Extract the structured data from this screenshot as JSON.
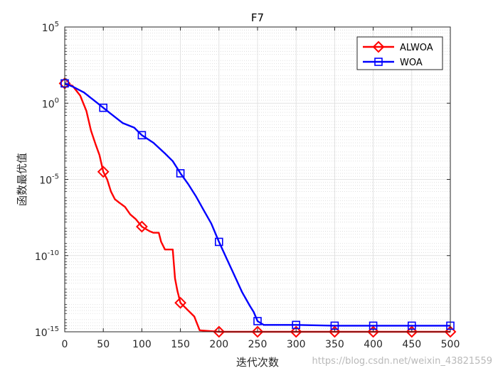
{
  "chart_data": {
    "type": "line",
    "title": "F7",
    "xlabel": "迭代次数",
    "ylabel": "函数最优值",
    "xlim": [
      0,
      500
    ],
    "ylim_exponent": [
      -15,
      5
    ],
    "yscale": "log",
    "x_ticks": [
      "0",
      "50",
      "100",
      "150",
      "200",
      "250",
      "300",
      "350",
      "400",
      "450",
      "500"
    ],
    "y_ticks": [
      {
        "base": "10",
        "exp": "5"
      },
      {
        "base": "10",
        "exp": "0"
      },
      {
        "base": "10",
        "exp": "-5"
      },
      {
        "base": "10",
        "exp": "-10"
      },
      {
        "base": "10",
        "exp": "-15"
      }
    ],
    "grid": true,
    "minor_grid": true,
    "legend_position": "top-right",
    "series": [
      {
        "name": "ALWOA",
        "color": "#ff0000",
        "marker": "diamond",
        "points": [
          [
            0,
            1.3
          ],
          [
            10,
            1.15
          ],
          [
            20,
            0.5
          ],
          [
            28,
            -0.5
          ],
          [
            34,
            -1.8
          ],
          [
            40,
            -2.7
          ],
          [
            45,
            -3.4
          ],
          [
            50,
            -4.5
          ],
          [
            55,
            -5.0
          ],
          [
            60,
            -5.8
          ],
          [
            65,
            -6.3
          ],
          [
            70,
            -6.5
          ],
          [
            78,
            -6.8
          ],
          [
            85,
            -7.3
          ],
          [
            92,
            -7.6
          ],
          [
            100,
            -8.1
          ],
          [
            110,
            -8.4
          ],
          [
            115,
            -8.5
          ],
          [
            122,
            -8.5
          ],
          [
            125,
            -9.1
          ],
          [
            130,
            -9.6
          ],
          [
            140,
            -9.6
          ],
          [
            143,
            -11.5
          ],
          [
            146,
            -12.3
          ],
          [
            150,
            -13.1
          ],
          [
            158,
            -13.5
          ],
          [
            168,
            -14.0
          ],
          [
            175,
            -14.9
          ],
          [
            200,
            -15.0
          ],
          [
            250,
            -15.0
          ],
          [
            300,
            -15.0
          ],
          [
            350,
            -15.0
          ],
          [
            400,
            -15.0
          ],
          [
            450,
            -15.0
          ],
          [
            500,
            -15.0
          ]
        ],
        "markers_x": [
          0,
          50,
          100,
          150,
          200,
          250,
          300,
          350,
          400,
          450,
          500
        ],
        "markers_y": [
          1.3,
          -4.5,
          -8.1,
          -13.1,
          -15.0,
          -15.0,
          -15.0,
          -15.0,
          -15.0,
          -15.0,
          -15.0
        ]
      },
      {
        "name": "WOA",
        "color": "#0000ff",
        "marker": "square",
        "points": [
          [
            0,
            1.3
          ],
          [
            10,
            1.1
          ],
          [
            25,
            0.7
          ],
          [
            40,
            0.1
          ],
          [
            50,
            -0.3
          ],
          [
            60,
            -0.7
          ],
          [
            75,
            -1.3
          ],
          [
            90,
            -1.6
          ],
          [
            100,
            -2.1
          ],
          [
            115,
            -2.6
          ],
          [
            130,
            -3.3
          ],
          [
            140,
            -3.8
          ],
          [
            150,
            -4.6
          ],
          [
            160,
            -5.3
          ],
          [
            170,
            -6.1
          ],
          [
            180,
            -7.0
          ],
          [
            190,
            -7.9
          ],
          [
            200,
            -9.1
          ],
          [
            210,
            -10.2
          ],
          [
            220,
            -11.3
          ],
          [
            230,
            -12.4
          ],
          [
            240,
            -13.3
          ],
          [
            245,
            -13.7
          ],
          [
            250,
            -14.3
          ],
          [
            258,
            -14.55
          ],
          [
            270,
            -14.55
          ],
          [
            300,
            -14.55
          ],
          [
            350,
            -14.6
          ],
          [
            400,
            -14.6
          ],
          [
            450,
            -14.6
          ],
          [
            500,
            -14.6
          ]
        ],
        "markers_x": [
          0,
          50,
          100,
          150,
          200,
          250,
          300,
          350,
          400,
          450,
          500
        ],
        "markers_y": [
          1.3,
          -0.3,
          -2.1,
          -4.6,
          -9.1,
          -14.3,
          -14.55,
          -14.6,
          -14.6,
          -14.6,
          -14.6
        ]
      }
    ]
  },
  "watermark": "https://blog.csdn.net/weixin_43821559"
}
